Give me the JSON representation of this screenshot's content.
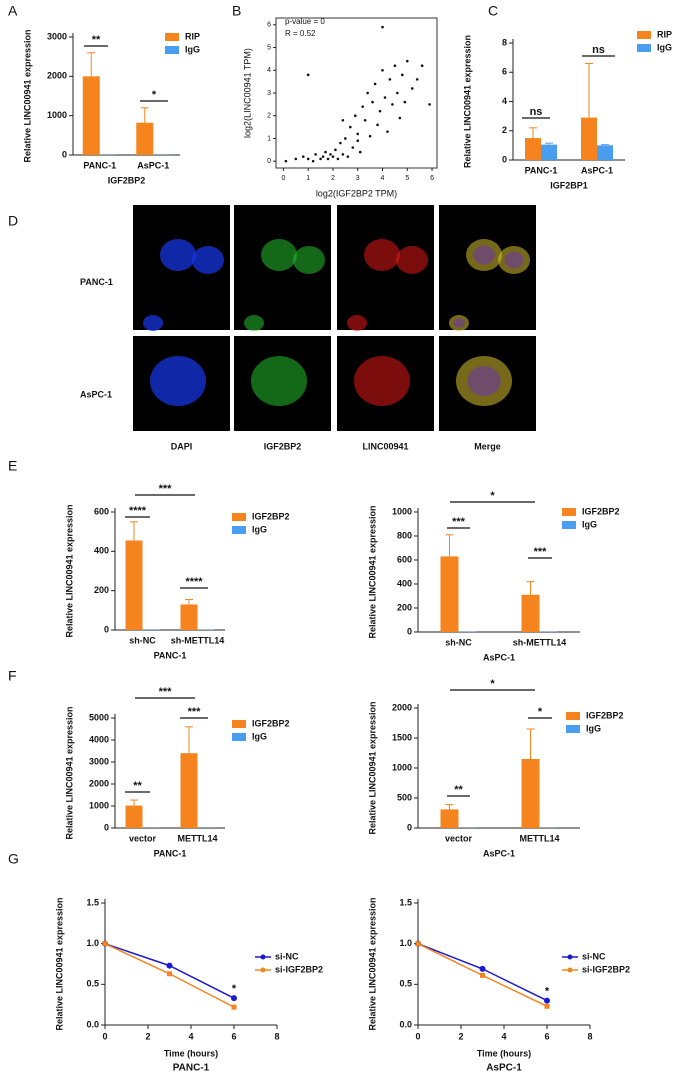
{
  "panel_labels": [
    "A",
    "B",
    "C",
    "D",
    "E",
    "F",
    "G"
  ],
  "microscopy": {
    "rows": [
      "PANC-1",
      "AsPC-1"
    ],
    "columns": [
      "DAPI",
      "IGF2BP2",
      "LINC00941",
      "Merge"
    ]
  },
  "chart_data": [
    {
      "type": "bar",
      "ylabel": "Relative LINC00941 expression",
      "xlabel": "IGF2BP2",
      "categories": [
        "PANC-1",
        "AsPC-1"
      ],
      "series": [
        {
          "name": "RIP",
          "color": "#f5841f",
          "values": [
            2000,
            820
          ],
          "errors": [
            600,
            380
          ]
        },
        {
          "name": "IgG",
          "color": "#4a9ef0",
          "values": [
            5,
            5
          ],
          "errors": [
            0,
            0
          ]
        }
      ],
      "ylim": [
        0,
        3000
      ],
      "yticks": [
        0,
        1000,
        2000,
        3000
      ],
      "annotations": [
        "**",
        "*"
      ]
    },
    {
      "type": "scatter",
      "xlabel": "log2(IGF2BP2 TPM)",
      "ylabel": "log2(LINC00941 TPM)",
      "annotations": [
        "p-value = 0",
        "R = 0.52"
      ],
      "color": "#111111",
      "x": [
        0.1,
        0.5,
        0.8,
        1.0,
        1.2,
        1.3,
        1.5,
        1.6,
        1.7,
        1.8,
        1.9,
        2.0,
        2.1,
        2.2,
        2.3,
        2.4,
        2.5,
        2.6,
        2.7,
        2.8,
        2.9,
        3.0,
        3.1,
        3.2,
        3.3,
        3.4,
        3.5,
        3.6,
        3.7,
        3.8,
        3.9,
        4.0,
        4.1,
        4.2,
        4.3,
        4.4,
        4.5,
        4.6,
        4.7,
        4.8,
        4.9,
        5.0,
        5.2,
        5.4,
        5.6,
        5.9,
        1.0,
        4.0,
        2.4,
        3.0
      ],
      "y": [
        0.0,
        0.1,
        0.2,
        0.1,
        0.0,
        0.3,
        0.1,
        0.2,
        0.4,
        0.1,
        0.3,
        0.2,
        0.5,
        0.1,
        0.8,
        0.3,
        1.0,
        0.2,
        1.5,
        0.6,
        2.0,
        1.2,
        0.4,
        2.4,
        1.8,
        3.0,
        1.1,
        2.6,
        3.4,
        1.6,
        2.2,
        4.0,
        2.8,
        1.3,
        3.6,
        2.5,
        4.2,
        3.0,
        1.9,
        3.8,
        2.6,
        4.4,
        3.2,
        3.6,
        4.2,
        2.5,
        3.8,
        5.9,
        1.8,
        0.9
      ],
      "xlim": [
        -0.3,
        6.2
      ],
      "ylim": [
        -0.3,
        6.3
      ],
      "xticks": [
        0,
        1,
        2,
        3,
        4,
        5,
        6
      ],
      "yticks": [
        0,
        1,
        2,
        3,
        4,
        5,
        6
      ]
    },
    {
      "type": "bar",
      "ylabel": "Relative LINC00941 expression",
      "xlabel": "IGF2BP1",
      "categories": [
        "PANC-1",
        "AsPC-1"
      ],
      "series": [
        {
          "name": "RIP",
          "color": "#f5841f",
          "values": [
            1.5,
            2.9
          ],
          "errors": [
            0.7,
            3.7
          ]
        },
        {
          "name": "IgG",
          "color": "#4a9ef0",
          "values": [
            1.05,
            1.0
          ],
          "errors": [
            0.1,
            0.05
          ]
        }
      ],
      "ylim": [
        0,
        8
      ],
      "yticks": [
        0,
        2,
        4,
        6,
        8
      ],
      "annotations": [
        "ns",
        "ns"
      ]
    },
    {
      "type": "bar",
      "ylabel": "Relative LINC00941 expression",
      "xlabel": "PANC-1",
      "categories": [
        "sh-NC",
        "sh-METTL14"
      ],
      "series": [
        {
          "name": "IGF2BP2",
          "color": "#f5841f",
          "values": [
            455,
            130
          ],
          "errors": [
            95,
            25
          ]
        },
        {
          "name": "IgG",
          "color": "#4a9ef0",
          "values": [
            2,
            2
          ],
          "errors": [
            0,
            0
          ]
        }
      ],
      "ylim": [
        0,
        600
      ],
      "yticks": [
        0,
        200,
        400,
        600
      ],
      "annotations": [
        "****",
        "****",
        "***"
      ]
    },
    {
      "type": "bar",
      "ylabel": "Relative LINC00941 expression",
      "xlabel": "AsPC-1",
      "categories": [
        "sh-NC",
        "sh-METTL14"
      ],
      "series": [
        {
          "name": "IGF2BP2",
          "color": "#f5841f",
          "values": [
            630,
            310
          ],
          "errors": [
            180,
            110
          ]
        },
        {
          "name": "IgG",
          "color": "#4a9ef0",
          "values": [
            3,
            3
          ],
          "errors": [
            0,
            0
          ]
        }
      ],
      "ylim": [
        0,
        1000
      ],
      "yticks": [
        0,
        200,
        400,
        600,
        800,
        1000
      ],
      "annotations": [
        "***",
        "***",
        "*"
      ]
    },
    {
      "type": "bar",
      "ylabel": "Relative LINC00941 expression",
      "xlabel": "PANC-1",
      "categories": [
        "vector",
        "METTL14"
      ],
      "series": [
        {
          "name": "IGF2BP2",
          "color": "#f5841f",
          "values": [
            1020,
            3400
          ],
          "errors": [
            250,
            1200
          ]
        },
        {
          "name": "IgG",
          "color": "#4a9ef0",
          "values": [
            5,
            5
          ],
          "errors": [
            0,
            0
          ]
        }
      ],
      "ylim": [
        0,
        5000
      ],
      "yticks": [
        0,
        1000,
        2000,
        3000,
        4000,
        5000
      ],
      "annotations": [
        "**",
        "***",
        "***"
      ]
    },
    {
      "type": "bar",
      "ylabel": "Relative LINC00941 expression",
      "xlabel": "AsPC-1",
      "categories": [
        "vector",
        "METTL14"
      ],
      "series": [
        {
          "name": "IGF2BP2",
          "color": "#f5841f",
          "values": [
            310,
            1150
          ],
          "errors": [
            80,
            500
          ]
        },
        {
          "name": "IgG",
          "color": "#4a9ef0",
          "values": [
            3,
            3
          ],
          "errors": [
            0,
            0
          ]
        }
      ],
      "ylim": [
        0,
        2000
      ],
      "yticks": [
        0,
        500,
        1000,
        1500,
        2000
      ],
      "annotations": [
        "**",
        "*",
        "*"
      ]
    },
    {
      "type": "line",
      "ylabel": "Relative LINC00941 expression",
      "xlabel": "Time (hours)",
      "title": "PANC-1",
      "x": [
        0,
        3,
        6
      ],
      "series": [
        {
          "name": "si-NC",
          "color": "#1a1ad0",
          "values": [
            1.0,
            0.73,
            0.33
          ]
        },
        {
          "name": "si-IGF2BP2",
          "color": "#f5841f",
          "values": [
            1.0,
            0.63,
            0.22
          ]
        }
      ],
      "xlim": [
        0,
        8
      ],
      "xticks": [
        0,
        2,
        4,
        6,
        8
      ],
      "ylim": [
        0,
        1.5
      ],
      "yticks": [
        {
          "value": 0,
          "label": "0.0"
        },
        0.5,
        {
          "value": 1,
          "label": "1.0"
        },
        1.5
      ],
      "annotations": [
        "*"
      ]
    },
    {
      "type": "line",
      "ylabel": "Relative LINC00941 expression",
      "xlabel": "Time (hours)",
      "title": "AsPC-1",
      "x": [
        0,
        3,
        6
      ],
      "series": [
        {
          "name": "si-NC",
          "color": "#1a1ad0",
          "values": [
            1.0,
            0.69,
            0.3
          ]
        },
        {
          "name": "si-IGF2BP2",
          "color": "#f5841f",
          "values": [
            1.0,
            0.61,
            0.23
          ]
        }
      ],
      "xlim": [
        0,
        8
      ],
      "xticks": [
        0,
        2,
        4,
        6,
        8
      ],
      "ylim": [
        0,
        1.5
      ],
      "yticks": [
        {
          "value": 0,
          "label": "0.0"
        },
        0.5,
        {
          "value": 1,
          "label": "1.0"
        },
        1.5
      ],
      "annotations": [
        "*"
      ]
    }
  ]
}
